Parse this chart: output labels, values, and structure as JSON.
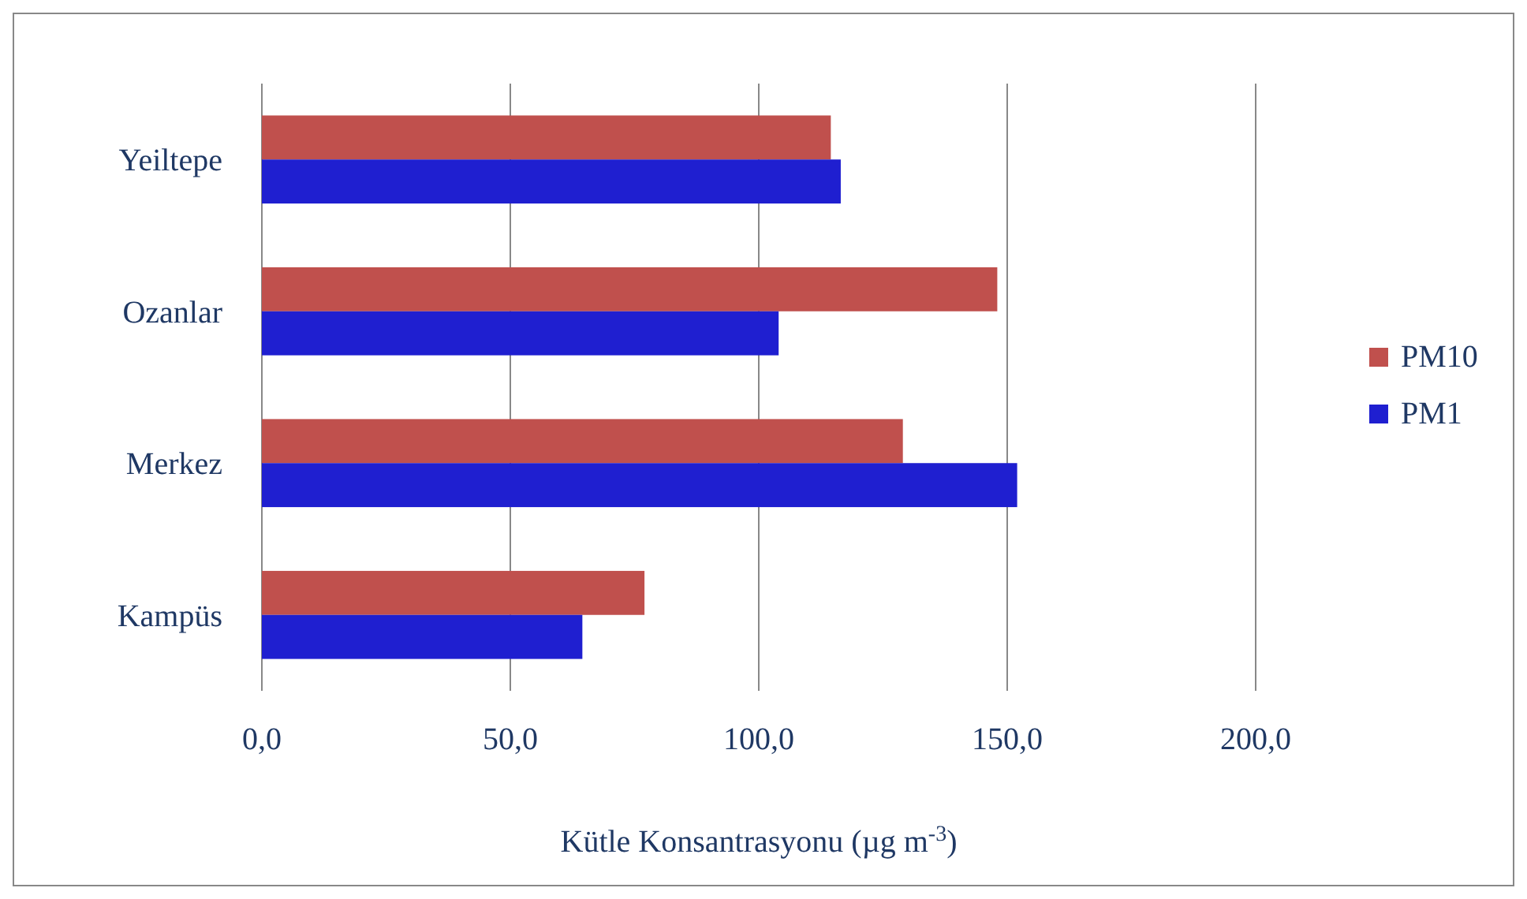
{
  "chart_data": {
    "type": "bar",
    "orientation": "horizontal",
    "categories": [
      "Yeiltepe",
      "Ozanlar",
      "Merkez",
      "Kampüs"
    ],
    "series": [
      {
        "name": "PM10",
        "color": "#c0504d",
        "values": [
          114.5,
          148,
          129,
          77
        ]
      },
      {
        "name": "PM1",
        "color": "#1f1fd0",
        "values": [
          116.5,
          104,
          152,
          64.5
        ]
      }
    ],
    "xlim": [
      0,
      200
    ],
    "xticks": [
      {
        "value": 0,
        "label": "0,0"
      },
      {
        "value": 50,
        "label": "50,0"
      },
      {
        "value": 100,
        "label": "100,0"
      },
      {
        "value": 150,
        "label": "150,0"
      },
      {
        "value": 200,
        "label": "200,0"
      }
    ],
    "xlabel": "Kütle Konsantrasyonu (µg m$^{-3}$)",
    "grid": "x",
    "legend": "right"
  }
}
